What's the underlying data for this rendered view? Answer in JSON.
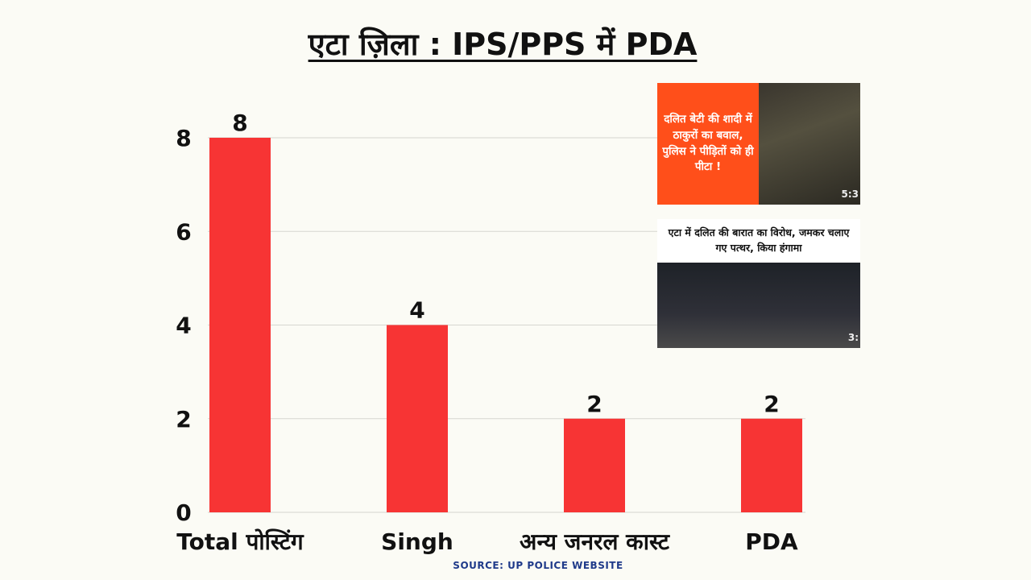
{
  "title": "एटा ज़िला : IPS/PPS में PDA",
  "source": "SOURCE: UP POLICE WEBSITE",
  "colors": {
    "bar": "#f73434",
    "grid": "#d6d6d0",
    "background": "#fbfbf5"
  },
  "news_cards": [
    {
      "caption": "दलित बेटी की शादी में ठाकुरों का बवाल, पुलिस ने पीड़ितों को ही पीटा !",
      "duration": "5:3"
    },
    {
      "caption": "एटा में दलित की बारात का विरोध, जमकर चलाए गए पत्थर, किया हंगामा",
      "duration": "3:"
    }
  ],
  "chart_data": {
    "type": "bar",
    "categories": [
      "Total पोस्टिंग",
      "Singh",
      "अन्य जनरल कास्ट",
      "PDA"
    ],
    "values": [
      8,
      4,
      2,
      2
    ],
    "title": "एटा ज़िला : IPS/PPS में PDA",
    "xlabel": "",
    "ylabel": "",
    "ylim": [
      0,
      8
    ],
    "yticks": [
      0,
      2,
      4,
      6,
      8
    ],
    "grid": true,
    "data_labels": true
  }
}
